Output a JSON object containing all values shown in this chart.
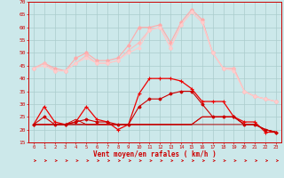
{
  "bg_color": "#cce8ea",
  "grid_color": "#aacccc",
  "title": "Vent moyen/en rafales ( km/h )",
  "x_labels": [
    "0",
    "1",
    "2",
    "3",
    "4",
    "5",
    "6",
    "7",
    "8",
    "9",
    "10",
    "11",
    "12",
    "13",
    "14",
    "15",
    "16",
    "17",
    "18",
    "19",
    "20",
    "21",
    "22",
    "23"
  ],
  "ylim": [
    15,
    70
  ],
  "yticks": [
    15,
    20,
    25,
    30,
    35,
    40,
    45,
    50,
    55,
    60,
    65,
    70
  ],
  "series": [
    {
      "color": "#ffaaaa",
      "lw": 0.8,
      "marker": "D",
      "ms": 1.8,
      "data": [
        44,
        46,
        44,
        43,
        48,
        50,
        47,
        47,
        48,
        53,
        60,
        60,
        61,
        54,
        62,
        67,
        63,
        50,
        44,
        44,
        35,
        33,
        32,
        31
      ]
    },
    {
      "color": "#ffbbbb",
      "lw": 0.8,
      "marker": "D",
      "ms": 1.8,
      "data": [
        44,
        46,
        43,
        43,
        46,
        49,
        46,
        46,
        47,
        51,
        54,
        59,
        60,
        52,
        61,
        66,
        62,
        50,
        44,
        44,
        35,
        33,
        32,
        31
      ]
    },
    {
      "color": "#ffcccc",
      "lw": 0.8,
      "marker": "D",
      "ms": 1.5,
      "data": [
        44,
        45,
        43,
        43,
        46,
        48,
        46,
        46,
        47,
        50,
        52,
        59,
        60,
        52,
        61,
        66,
        62,
        50,
        44,
        43,
        35,
        33,
        32,
        31
      ]
    },
    {
      "color": "#ee0000",
      "lw": 0.9,
      "marker": "+",
      "ms": 3.5,
      "mew": 0.8,
      "data": [
        22,
        29,
        23,
        22,
        23,
        29,
        24,
        23,
        20,
        22,
        34,
        40,
        40,
        40,
        39,
        36,
        31,
        31,
        31,
        25,
        23,
        23,
        19,
        19
      ]
    },
    {
      "color": "#cc0000",
      "lw": 0.8,
      "marker": "D",
      "ms": 1.5,
      "data": [
        22,
        25,
        22,
        22,
        23,
        24,
        23,
        23,
        22,
        22,
        29,
        32,
        32,
        34,
        35,
        35,
        30,
        25,
        25,
        25,
        22,
        22,
        20,
        19
      ]
    },
    {
      "color": "#cc0000",
      "lw": 0.7,
      "marker": null,
      "ms": 0,
      "data": [
        22,
        22,
        22,
        22,
        22,
        22,
        22,
        22,
        22,
        22,
        22,
        22,
        22,
        22,
        22,
        22,
        25,
        25,
        25,
        25,
        22,
        22,
        20,
        19
      ]
    },
    {
      "color": "#aa0000",
      "lw": 0.7,
      "marker": null,
      "ms": 0,
      "data": [
        22,
        22,
        22,
        22,
        22,
        22,
        22,
        22,
        22,
        22,
        22,
        22,
        22,
        22,
        22,
        22,
        22,
        22,
        22,
        22,
        22,
        22,
        20,
        19
      ]
    },
    {
      "color": "#cc0000",
      "lw": 0.7,
      "marker": null,
      "ms": 0,
      "data": [
        22,
        22,
        22,
        22,
        24,
        22,
        22,
        22,
        22,
        22,
        22,
        22,
        22,
        22,
        22,
        22,
        25,
        25,
        25,
        25,
        22,
        22,
        20,
        19
      ]
    }
  ]
}
